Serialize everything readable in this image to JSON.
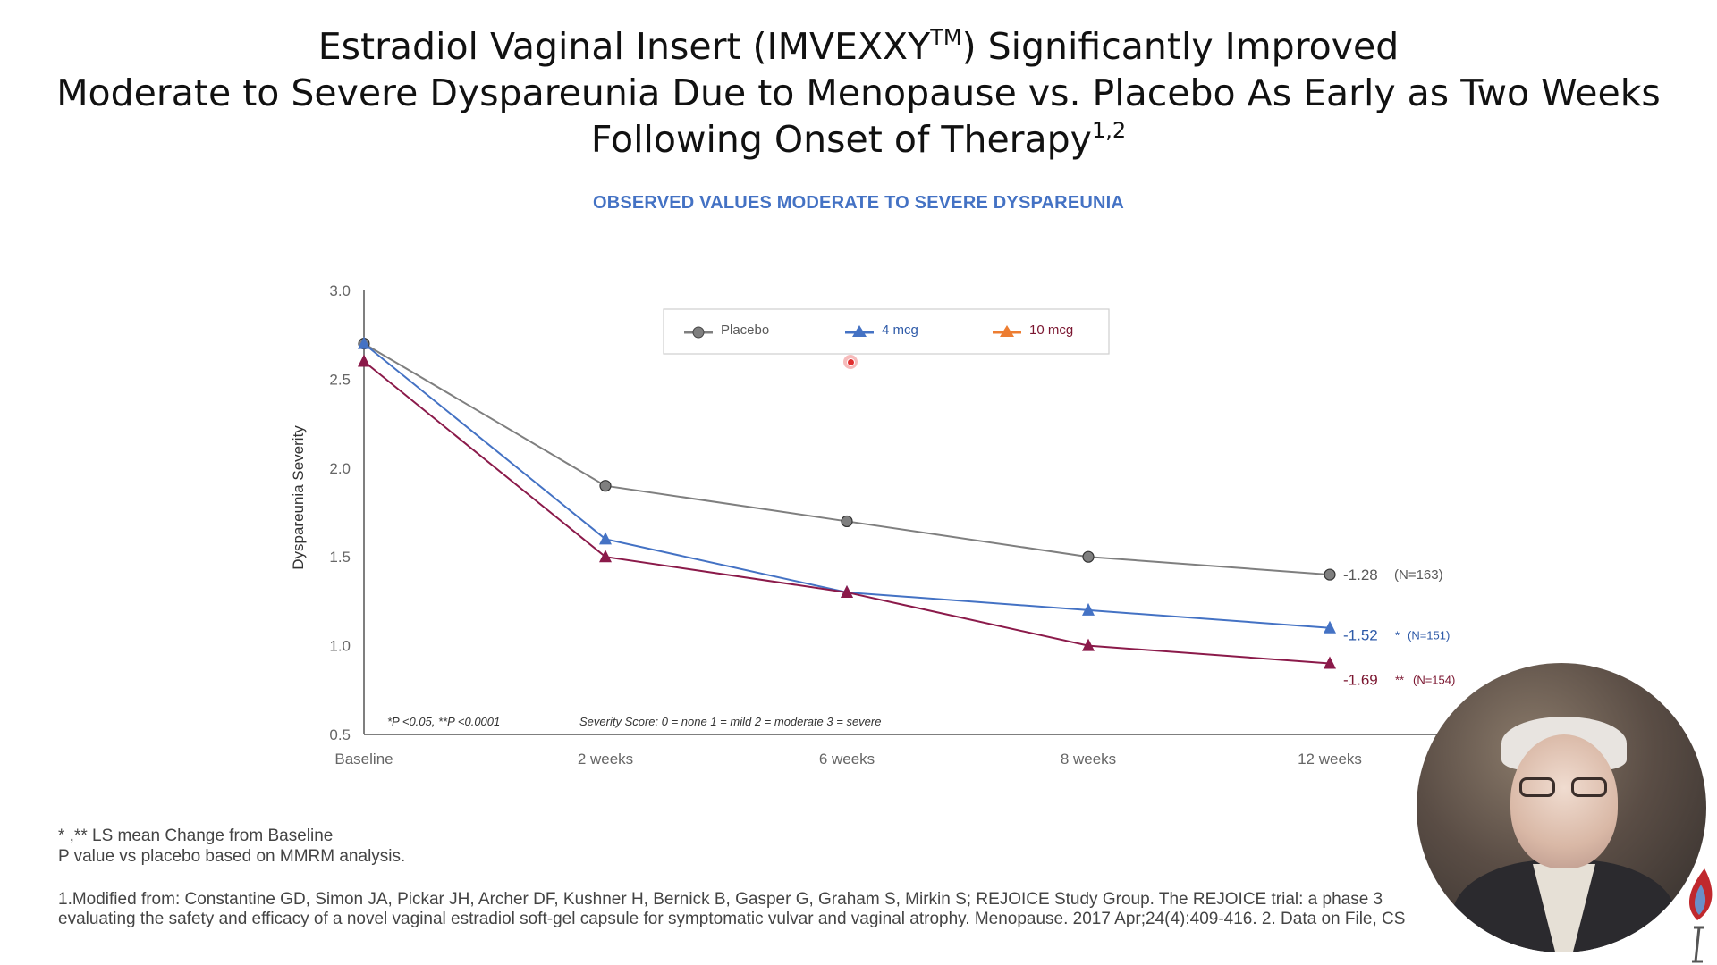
{
  "slide": {
    "title_line1_pre": "Estradiol Vaginal Insert (IMVEXXY",
    "title_line1_sup": "TM",
    "title_line1_post": ") Significantly Improved",
    "title_line2": "Moderate to Severe Dyspareunia Due to Menopause vs. Placebo As Early as Two Weeks",
    "title_line3": "Following Onset of Therapy",
    "title_line3_sup": "1,2",
    "footnote1": "* ,** LS mean Change from Baseline",
    "footnote2": "P value vs placebo based on MMRM analysis.",
    "reference1": "1.Modified from: Constantine GD, Simon JA, Pickar JH, Archer DF, Kushner H, Bernick B, Gasper G, Graham S, Mirkin S; REJOICE Study Group. The REJOICE trial: a phase 3",
    "reference2": "evaluating the safety and efficacy of a novel vaginal estradiol soft-gel capsule for symptomatic vulvar and vaginal atrophy. Menopause. 2017 Apr;24(4):409-416. 2. Data on File, CS"
  },
  "chart_data": {
    "type": "line",
    "title": "OBSERVED VALUES MODERATE TO SEVERE DYSPAREUNIA",
    "xlabel": "",
    "ylabel": "Dyspareunia Severity",
    "categories": [
      "Baseline",
      "2 weeks",
      "6 weeks",
      "8 weeks",
      "12 weeks"
    ],
    "ylim": [
      0.5,
      3.0
    ],
    "yticks": [
      "3.0",
      "2.5",
      "2.0",
      "1.5",
      "1.0",
      "0.5"
    ],
    "legend_position": "top-center",
    "series": [
      {
        "name": "Placebo",
        "marker": "circle",
        "color": "#7f7f7f",
        "text_color": "#595959",
        "values": [
          2.7,
          1.9,
          1.7,
          1.5,
          1.4
        ],
        "end_label": "-1.28",
        "significance": "",
        "n_label": "(N=163)"
      },
      {
        "name": "4 mcg",
        "marker": "triangle",
        "color": "#4472c4",
        "text_color": "#2e5aa8",
        "values": [
          2.7,
          1.6,
          1.3,
          1.2,
          1.1
        ],
        "end_label": "-1.52",
        "significance": "*",
        "n_label": "(N=151)"
      },
      {
        "name": "10 mcg",
        "marker": "triangle",
        "color": "#8b1a4a",
        "legend_color": "#ed7d31",
        "text_color": "#7b1630",
        "values": [
          2.6,
          1.5,
          1.3,
          1.0,
          0.9
        ],
        "end_label": "-1.69",
        "significance": "**",
        "n_label": "(N=154)"
      }
    ],
    "annotations": [
      {
        "text": "*P <0.05, **P <0.0001",
        "anchor": "bottom-left"
      },
      {
        "text": "Severity Score: 0 = none   1 = mild   2 = moderate   3 = severe",
        "anchor": "bottom-center"
      }
    ]
  }
}
